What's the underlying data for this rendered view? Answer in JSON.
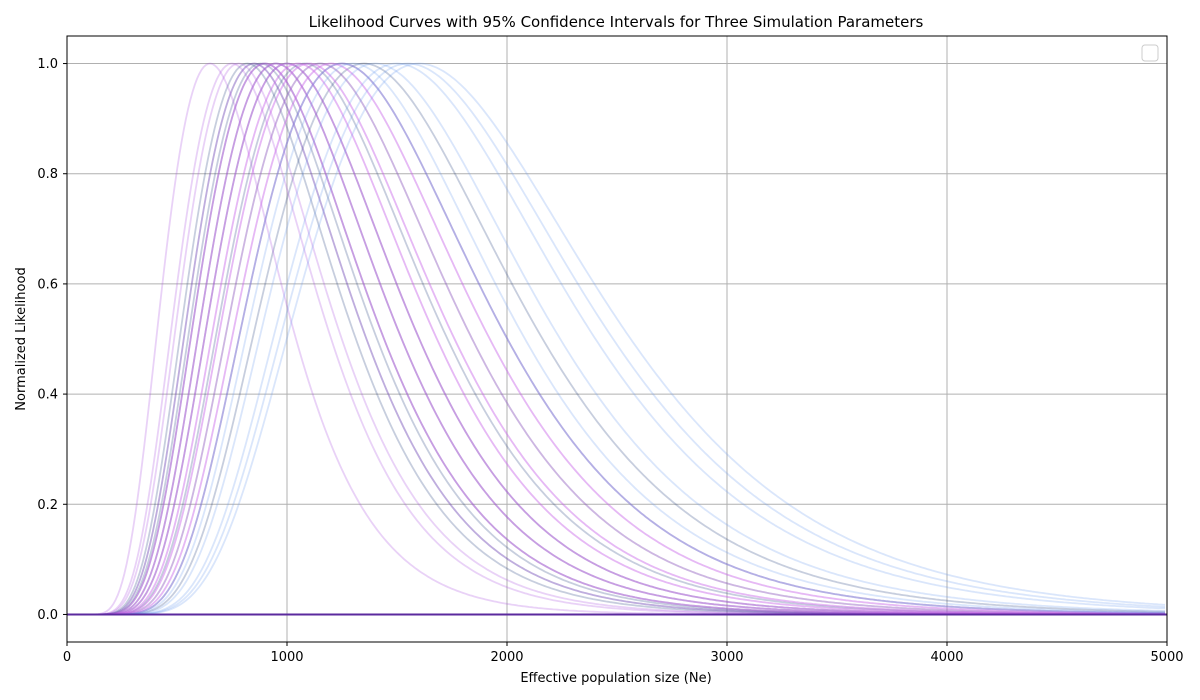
{
  "chart_data": {
    "type": "line",
    "title": "Likelihood Curves with 95% Confidence Intervals for Three Simulation Parameters",
    "xlabel": "Effective population size (Ne)",
    "ylabel": "Normalized Likelihood",
    "xlim": [
      0,
      5000
    ],
    "ylim": [
      -0.05,
      1.05
    ],
    "xticks": [
      0,
      1000,
      2000,
      3000,
      4000,
      5000
    ],
    "yticks": [
      0.0,
      0.2,
      0.4,
      0.6,
      0.8,
      1.0
    ],
    "ytick_labels": [
      "0.0",
      "0.2",
      "0.4",
      "0.6",
      "0.8",
      "1.0"
    ],
    "grid": true,
    "legend": {
      "placement": "top-right",
      "entries": []
    },
    "series": [
      {
        "color": "#1f3a7a",
        "peaks": [
          820,
          850,
          880,
          900,
          950,
          1000,
          1080,
          1150,
          1250,
          1350
        ]
      },
      {
        "color": "#a64ce0",
        "peaks": [
          650,
          750,
          780,
          850,
          900,
          950,
          1000,
          1050,
          1100,
          1200
        ]
      },
      {
        "color": "#e070f0",
        "peaks": [
          900,
          950,
          1000,
          1050,
          1100,
          1150,
          1200,
          1250
        ]
      },
      {
        "color": "#6a9cf0",
        "peaks": [
          1250,
          1300,
          1400,
          1500,
          1550,
          1600
        ]
      }
    ]
  }
}
